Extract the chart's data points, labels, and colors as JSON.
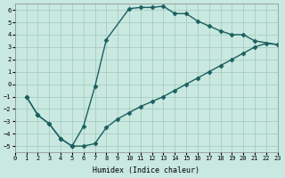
{
  "xlabel": "Humidex (Indice chaleur)",
  "bg_color": "#c8e8e0",
  "grid_color": "#a0c8c0",
  "line_color": "#1a6060",
  "xlim": [
    0,
    23
  ],
  "ylim": [
    -5.5,
    6.5
  ],
  "xticks": [
    0,
    1,
    2,
    3,
    4,
    5,
    6,
    7,
    8,
    9,
    10,
    11,
    12,
    13,
    14,
    15,
    16,
    17,
    18,
    19,
    20,
    21,
    22,
    23
  ],
  "yticks": [
    -5,
    -4,
    -3,
    -2,
    -1,
    0,
    1,
    2,
    3,
    4,
    5,
    6
  ],
  "curve1_x": [
    1,
    2,
    3,
    4,
    5,
    6,
    7,
    8,
    10,
    11,
    12,
    13,
    14,
    15,
    16,
    17,
    18,
    19,
    20,
    21,
    23
  ],
  "curve1_y": [
    -1,
    -2.5,
    -3.2,
    -4.4,
    -5.0,
    -3.4,
    -0.2,
    3.6,
    6.1,
    6.2,
    6.2,
    6.3,
    5.7,
    5.7,
    5.1,
    4.7,
    4.3,
    4.0,
    4.0,
    3.5,
    3.2
  ],
  "curve2_x": [
    1,
    2,
    3,
    4,
    5,
    5,
    6,
    7,
    8,
    9,
    10,
    11,
    12,
    13,
    14,
    15,
    16,
    17,
    18,
    19,
    20,
    21,
    22,
    23
  ],
  "curve2_y": [
    -1,
    -2.5,
    -3.2,
    -4.4,
    -5.0,
    -5.0,
    -5.0,
    -4.8,
    -3.5,
    -2.8,
    -2.3,
    -1.8,
    -1.4,
    -1.0,
    -0.5,
    0.0,
    0.5,
    1.0,
    1.5,
    2.0,
    2.5,
    3.0,
    3.3,
    3.2
  ]
}
